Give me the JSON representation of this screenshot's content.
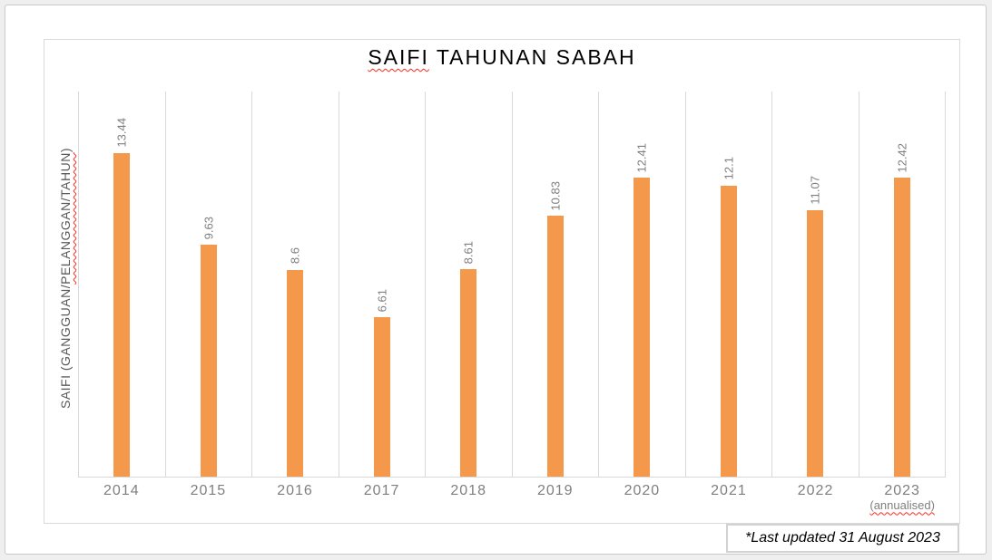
{
  "chart_data": {
    "type": "bar",
    "title": "SAIFI TAHUNAN SABAH",
    "title_parts": {
      "misspelled": "SAIFI",
      "rest": " TAHUNAN SABAH"
    },
    "ylabel": "SAIFI (GANGGUAN/PELANGGAN/TAHUN)",
    "ylabel_parts": {
      "plain1": "SAIFI (GANGGUAN/",
      "misspelled": "PELANGGAN/TAHUN",
      "plain2": ")"
    },
    "xlabel": "",
    "categories": [
      "2014",
      "2015",
      "2016",
      "2017",
      "2018",
      "2019",
      "2020",
      "2021",
      "2022",
      "2023"
    ],
    "last_category_note": "(annualised)",
    "values": [
      13.44,
      9.63,
      8.6,
      6.61,
      8.61,
      10.83,
      12.41,
      12.1,
      11.07,
      12.42
    ],
    "data_labels": [
      "13.44",
      "9.63",
      "8.6",
      "6.61",
      "8.61",
      "10.83",
      "12.41",
      "12.1",
      "11.07",
      "12.42"
    ],
    "ylim": [
      0,
      16
    ],
    "legend": "none",
    "grid": "vertical-category-separators",
    "data_label_rotation": "vertical",
    "colors": {
      "bar": "#F4984C",
      "gridline": "#D9D9D9",
      "axis_text": "#7F7F7F",
      "ylabel_text": "#595959",
      "title_text": "#000000",
      "spellcheck_underline": "#FF2A1C"
    }
  },
  "footer": {
    "note": "*Last updated 31 August 2023"
  }
}
